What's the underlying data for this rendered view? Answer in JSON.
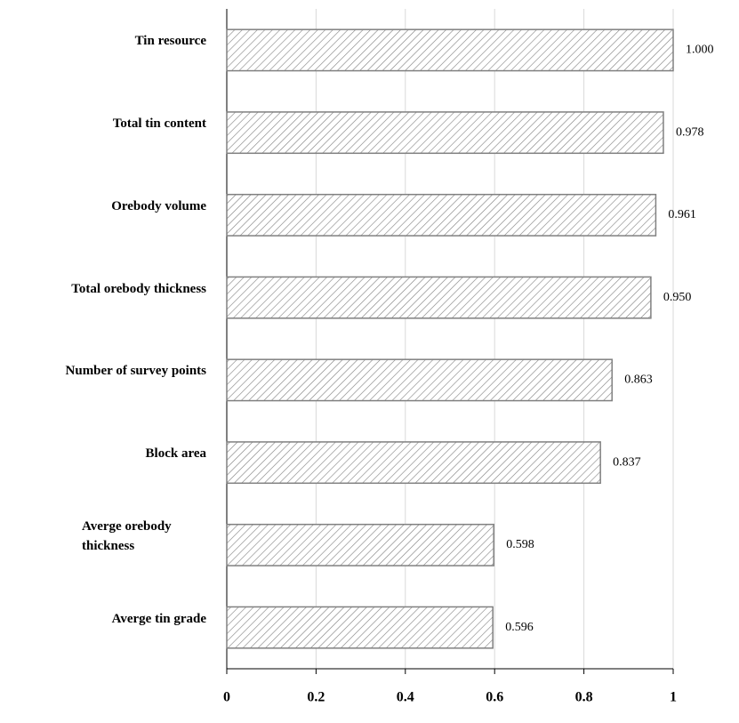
{
  "chart_data": {
    "type": "bar",
    "orientation": "horizontal",
    "categories": [
      "Tin resource",
      "Total tin content",
      "Orebody volume",
      "Total orebody thickness",
      "Number of survey points",
      "Block area",
      "Averge orebody thickness",
      "Averge tin grade"
    ],
    "values": [
      1.0,
      0.978,
      0.961,
      0.95,
      0.863,
      0.837,
      0.598,
      0.596
    ],
    "value_labels": [
      "1.000",
      "0.978",
      "0.961",
      "0.950",
      "0.863",
      "0.837",
      "0.598",
      "0.596"
    ],
    "color": "#808080",
    "xlim": [
      0,
      1
    ],
    "xticks": [
      0,
      0.2,
      0.4,
      0.6,
      0.8,
      1
    ],
    "grid": true
  }
}
